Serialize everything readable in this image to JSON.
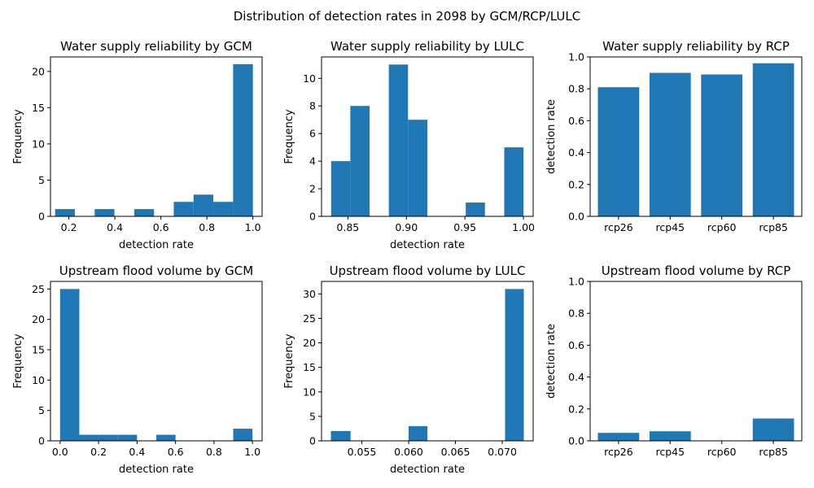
{
  "figure_title": "Distribution of detection rates in 2098 by GCM/RCP/LULC",
  "colors": {
    "bar": "#1f77b4",
    "axis": "#000000",
    "background": "#ffffff"
  },
  "chart_data": [
    {
      "id": "ws-gcm",
      "type": "histogram",
      "title": "Water supply reliability by GCM",
      "xlabel": "detection rate",
      "ylabel": "Frequency",
      "xlim": [
        0.12,
        1.04
      ],
      "ylim": [
        0,
        22
      ],
      "xticks": [
        0.2,
        0.4,
        0.6,
        0.8,
        1.0
      ],
      "xticklabels": [
        "0.2",
        "0.4",
        "0.6",
        "0.8",
        "1.0"
      ],
      "yticks": [
        0,
        5,
        10,
        15,
        20
      ],
      "yticklabels": [
        "0",
        "5",
        "10",
        "15",
        "20"
      ],
      "bins": [
        {
          "x0": 0.14,
          "x1": 0.226,
          "count": 1
        },
        {
          "x0": 0.226,
          "x1": 0.312,
          "count": 0
        },
        {
          "x0": 0.312,
          "x1": 0.398,
          "count": 1
        },
        {
          "x0": 0.398,
          "x1": 0.484,
          "count": 0
        },
        {
          "x0": 0.484,
          "x1": 0.57,
          "count": 1
        },
        {
          "x0": 0.57,
          "x1": 0.656,
          "count": 0
        },
        {
          "x0": 0.656,
          "x1": 0.742,
          "count": 2
        },
        {
          "x0": 0.742,
          "x1": 0.828,
          "count": 3
        },
        {
          "x0": 0.828,
          "x1": 0.914,
          "count": 2
        },
        {
          "x0": 0.914,
          "x1": 1.0,
          "count": 21
        }
      ]
    },
    {
      "id": "ws-lulc",
      "type": "histogram",
      "title": "Water supply reliability by LULC",
      "xlabel": "detection rate",
      "ylabel": "Frequency",
      "xlim": [
        0.8275,
        1.0083
      ],
      "ylim": [
        0,
        11.55
      ],
      "xticks": [
        0.85,
        0.9,
        0.95,
        1.0
      ],
      "xticklabels": [
        "0.85",
        "0.90",
        "0.95",
        "1.00"
      ],
      "yticks": [
        0,
        2,
        4,
        6,
        8,
        10
      ],
      "yticklabels": [
        "0",
        "2",
        "4",
        "6",
        "8",
        "10"
      ],
      "bins": [
        {
          "x0": 0.8357,
          "x1": 0.8521,
          "count": 4
        },
        {
          "x0": 0.8521,
          "x1": 0.8686,
          "count": 8
        },
        {
          "x0": 0.8686,
          "x1": 0.885,
          "count": 0
        },
        {
          "x0": 0.885,
          "x1": 0.9014,
          "count": 11
        },
        {
          "x0": 0.9014,
          "x1": 0.9179,
          "count": 7
        },
        {
          "x0": 0.9179,
          "x1": 0.9343,
          "count": 0
        },
        {
          "x0": 0.9343,
          "x1": 0.9507,
          "count": 0
        },
        {
          "x0": 0.9507,
          "x1": 0.9671,
          "count": 1
        },
        {
          "x0": 0.9671,
          "x1": 0.9836,
          "count": 0
        },
        {
          "x0": 0.9836,
          "x1": 1.0,
          "count": 5
        }
      ]
    },
    {
      "id": "ws-rcp",
      "type": "bar",
      "title": "Water supply reliability by RCP",
      "xlabel": "",
      "ylabel": "detection rate",
      "categories": [
        "rcp26",
        "rcp45",
        "rcp60",
        "rcp85"
      ],
      "values": [
        0.81,
        0.9,
        0.89,
        0.96
      ],
      "ylim": [
        0,
        1.0
      ],
      "yticks": [
        0,
        0.2,
        0.4,
        0.6,
        0.8,
        1.0
      ],
      "yticklabels": [
        "0.0",
        "0.2",
        "0.4",
        "0.6",
        "0.8",
        "1.0"
      ]
    },
    {
      "id": "uf-gcm",
      "type": "histogram",
      "title": "Upstream flood volume by GCM",
      "xlabel": "detection rate",
      "ylabel": "Frequency",
      "xlim": [
        -0.05,
        1.05
      ],
      "ylim": [
        0,
        26.25
      ],
      "xticks": [
        0.0,
        0.2,
        0.4,
        0.6,
        0.8,
        1.0
      ],
      "xticklabels": [
        "0.0",
        "0.2",
        "0.4",
        "0.6",
        "0.8",
        "1.0"
      ],
      "yticks": [
        0,
        5,
        10,
        15,
        20,
        25
      ],
      "yticklabels": [
        "0",
        "5",
        "10",
        "15",
        "20",
        "25"
      ],
      "bins": [
        {
          "x0": 0.0,
          "x1": 0.1,
          "count": 25
        },
        {
          "x0": 0.1,
          "x1": 0.2,
          "count": 1
        },
        {
          "x0": 0.2,
          "x1": 0.3,
          "count": 1
        },
        {
          "x0": 0.3,
          "x1": 0.4,
          "count": 1
        },
        {
          "x0": 0.4,
          "x1": 0.5,
          "count": 0
        },
        {
          "x0": 0.5,
          "x1": 0.6,
          "count": 1
        },
        {
          "x0": 0.6,
          "x1": 0.7,
          "count": 0
        },
        {
          "x0": 0.7,
          "x1": 0.8,
          "count": 0
        },
        {
          "x0": 0.8,
          "x1": 0.9,
          "count": 0
        },
        {
          "x0": 0.9,
          "x1": 1.0,
          "count": 2
        }
      ]
    },
    {
      "id": "uf-lulc",
      "type": "histogram",
      "title": "Upstream flood volume by LULC",
      "xlabel": "detection rate",
      "ylabel": "Frequency",
      "xlim": [
        0.0507,
        0.0733
      ],
      "ylim": [
        0,
        32.55
      ],
      "xticks": [
        0.055,
        0.06,
        0.065,
        0.07
      ],
      "xticklabels": [
        "0.055",
        "0.060",
        "0.065",
        "0.070"
      ],
      "yticks": [
        0,
        5,
        10,
        15,
        20,
        25,
        30
      ],
      "yticklabels": [
        "0",
        "5",
        "10",
        "15",
        "20",
        "25",
        "30"
      ],
      "bins": [
        {
          "x0": 0.0517,
          "x1": 0.0538,
          "count": 2
        },
        {
          "x0": 0.0538,
          "x1": 0.0558,
          "count": 0
        },
        {
          "x0": 0.0558,
          "x1": 0.0579,
          "count": 0
        },
        {
          "x0": 0.0579,
          "x1": 0.06,
          "count": 0
        },
        {
          "x0": 0.06,
          "x1": 0.062,
          "count": 3
        },
        {
          "x0": 0.062,
          "x1": 0.0641,
          "count": 0
        },
        {
          "x0": 0.0641,
          "x1": 0.0661,
          "count": 0
        },
        {
          "x0": 0.0661,
          "x1": 0.0682,
          "count": 0
        },
        {
          "x0": 0.0682,
          "x1": 0.0703,
          "count": 0
        },
        {
          "x0": 0.0703,
          "x1": 0.0723,
          "count": 31
        }
      ]
    },
    {
      "id": "uf-rcp",
      "type": "bar",
      "title": "Upstream flood volume by RCP",
      "xlabel": "",
      "ylabel": "detection rate",
      "categories": [
        "rcp26",
        "rcp45",
        "rcp60",
        "rcp85"
      ],
      "values": [
        0.05,
        0.06,
        0.0,
        0.14
      ],
      "ylim": [
        0,
        1.0
      ],
      "yticks": [
        0,
        0.2,
        0.4,
        0.6,
        0.8,
        1.0
      ],
      "yticklabels": [
        "0.0",
        "0.2",
        "0.4",
        "0.6",
        "0.8",
        "1.0"
      ]
    }
  ]
}
